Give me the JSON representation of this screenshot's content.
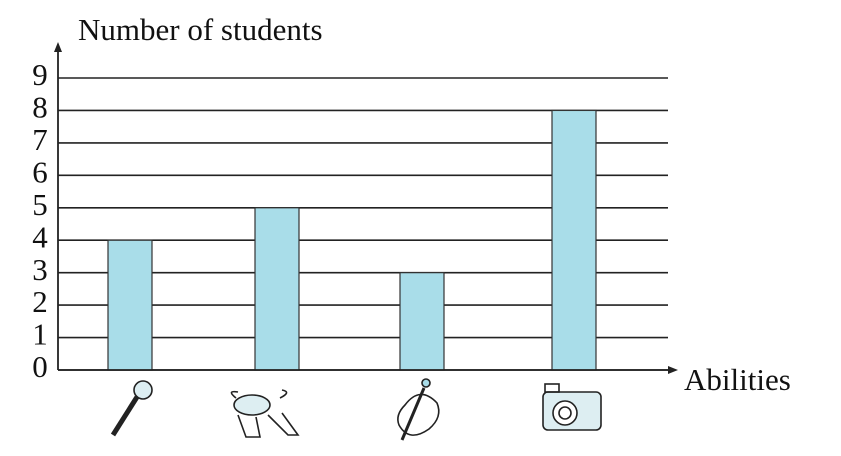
{
  "chart_data": {
    "type": "bar",
    "y_label": "Number of students",
    "x_label": "Abilities",
    "categories": [
      null,
      null,
      null,
      null
    ],
    "values": [
      4,
      5,
      3,
      8
    ],
    "color": "#a9dde9",
    "ylim": [
      0,
      9
    ],
    "yticks": [
      0,
      1,
      2,
      3,
      4,
      5,
      6,
      7,
      8,
      9
    ],
    "grid": true
  }
}
